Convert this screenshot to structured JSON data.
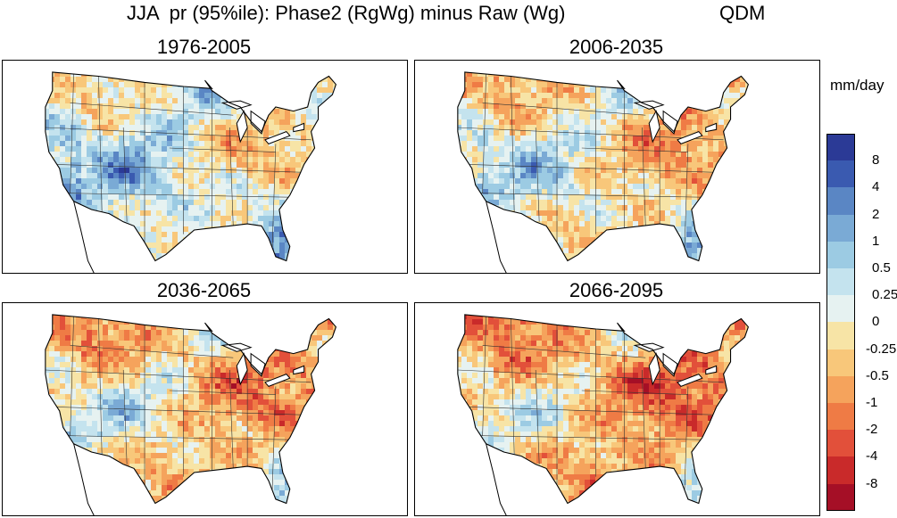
{
  "title": {
    "main": "JJA  pr (95%ile): Phase2 (RgWg) minus Raw (Wg)",
    "method": "QDM"
  },
  "panels": [
    {
      "period": "1976-2005",
      "intensity": 0.15
    },
    {
      "period": "2006-2035",
      "intensity": 0.45
    },
    {
      "period": "2036-2065",
      "intensity": 0.7
    },
    {
      "period": "2066-2095",
      "intensity": 0.9
    }
  ],
  "colorbar": {
    "units": "mm/day",
    "labels": [
      "8",
      "4",
      "2",
      "1",
      "0.5",
      "0.25",
      "0",
      "-0.25",
      "-0.5",
      "-1",
      "-2",
      "-4",
      "-8"
    ],
    "colors": [
      "#2b3a96",
      "#3a5ab0",
      "#5a86c4",
      "#7aaad5",
      "#9ccbe3",
      "#c4e3ee",
      "#e6f2f1",
      "#f7e4a6",
      "#f8c77a",
      "#f5a35c",
      "#ef7b45",
      "#e2503a",
      "#c92a2a",
      "#a50f26"
    ]
  }
}
